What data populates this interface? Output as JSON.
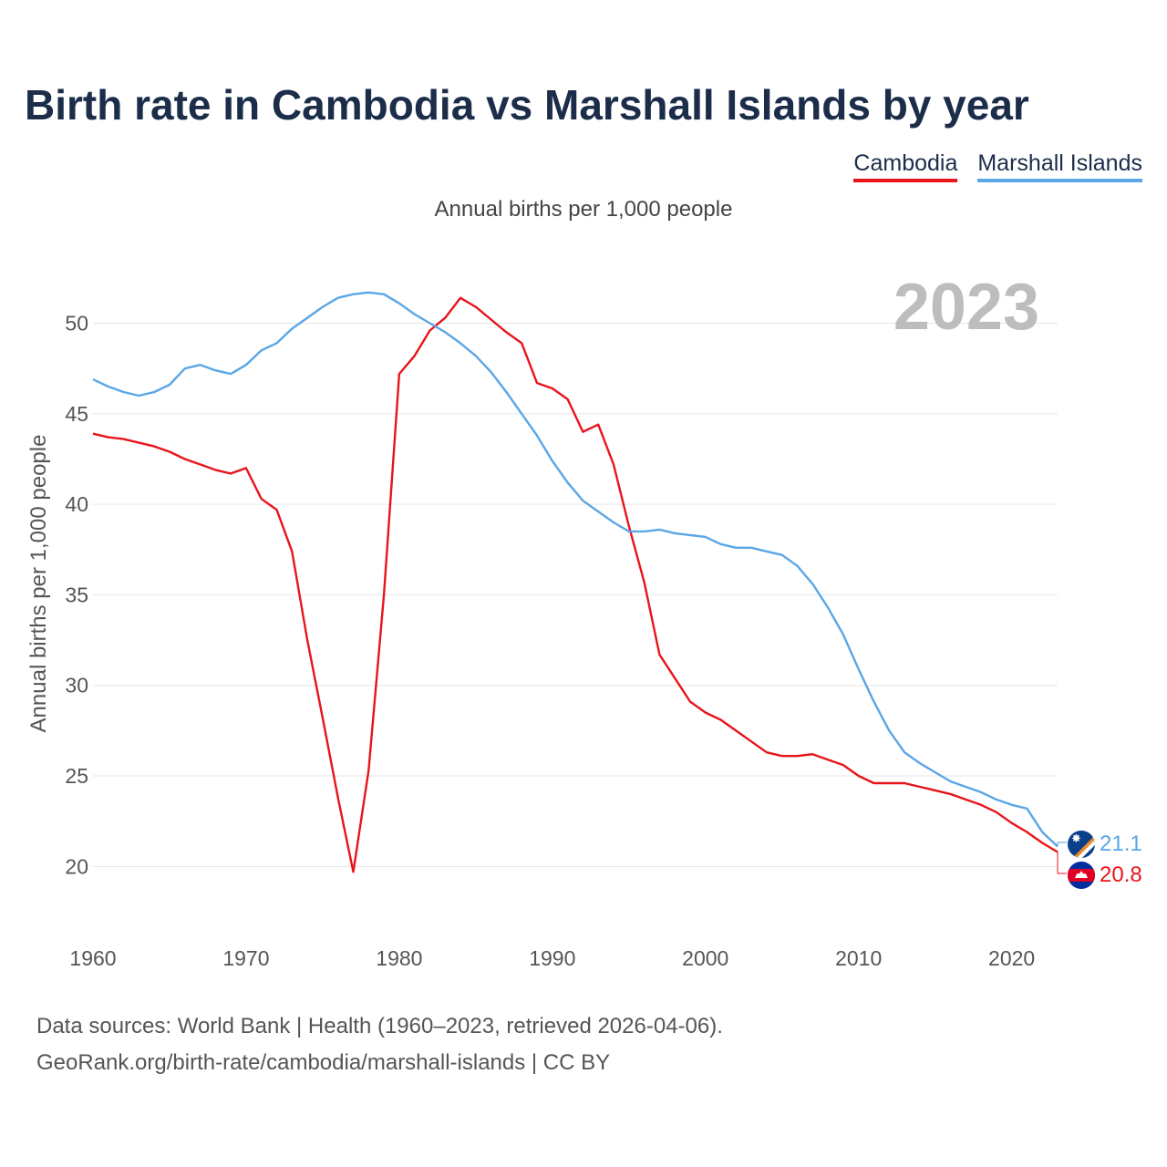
{
  "title": "Birth rate in Cambodia vs Marshall Islands by year",
  "subtitle": "Annual births per 1,000 people",
  "year_label": "2023",
  "legend": [
    {
      "name": "Cambodia",
      "color": "#e8141b"
    },
    {
      "name": "Marshall Islands",
      "color": "#5aa6e6"
    }
  ],
  "source": {
    "line1": "Data sources: World Bank | Health (1960–2023, retrieved 2026-04-06).",
    "line2": "GeoRank.org/birth-rate/cambodia/marshall-islands | CC BY"
  },
  "flags": {
    "cambodia": "cambodia-flag-icon",
    "marshall": "marshall-islands-flag-icon"
  },
  "chart_data": {
    "type": "line",
    "title": "Birth rate in Cambodia vs Marshall Islands by year",
    "ylabel": "Annual births per 1,000 people",
    "xlabel": "",
    "xlim": [
      1960,
      2023
    ],
    "ylim": [
      17.5,
      53.5
    ],
    "xticks": [
      1960,
      1970,
      1980,
      1990,
      2000,
      2010,
      2020
    ],
    "yticks": [
      20,
      25,
      30,
      35,
      40,
      45,
      50
    ],
    "grid": true,
    "legend_position": "top-right",
    "x": [
      1960,
      1961,
      1962,
      1963,
      1964,
      1965,
      1966,
      1967,
      1968,
      1969,
      1970,
      1971,
      1972,
      1973,
      1974,
      1975,
      1976,
      1977,
      1978,
      1979,
      1980,
      1981,
      1982,
      1983,
      1984,
      1985,
      1986,
      1987,
      1988,
      1989,
      1990,
      1991,
      1992,
      1993,
      1994,
      1995,
      1996,
      1997,
      1998,
      1999,
      2000,
      2001,
      2002,
      2003,
      2004,
      2005,
      2006,
      2007,
      2008,
      2009,
      2010,
      2011,
      2012,
      2013,
      2014,
      2015,
      2016,
      2017,
      2018,
      2019,
      2020,
      2021,
      2022,
      2023
    ],
    "series": [
      {
        "name": "Cambodia",
        "color": "#e8141b",
        "end_label": "20.8",
        "values": [
          43.9,
          43.7,
          43.6,
          43.4,
          43.2,
          42.9,
          42.5,
          42.2,
          41.9,
          41.7,
          42.0,
          40.3,
          39.7,
          37.4,
          32.5,
          28.2,
          23.8,
          19.7,
          25.3,
          35.0,
          47.2,
          48.2,
          49.6,
          50.3,
          51.4,
          50.9,
          50.2,
          49.5,
          48.9,
          46.7,
          46.4,
          45.8,
          44.0,
          44.4,
          42.2,
          38.8,
          35.7,
          31.7,
          30.4,
          29.1,
          28.5,
          28.1,
          27.5,
          26.9,
          26.3,
          26.1,
          26.1,
          26.2,
          25.9,
          25.6,
          25.0,
          24.6,
          24.6,
          24.6,
          24.4,
          24.2,
          24.0,
          23.7,
          23.4,
          23.0,
          22.4,
          21.9,
          21.3,
          20.8
        ]
      },
      {
        "name": "Marshall Islands",
        "color": "#5aa6e6",
        "end_label": "21.1",
        "values": [
          46.9,
          46.5,
          46.2,
          46.0,
          46.2,
          46.6,
          47.5,
          47.7,
          47.4,
          47.2,
          47.7,
          48.5,
          48.9,
          49.7,
          50.3,
          50.9,
          51.4,
          51.6,
          51.7,
          51.6,
          51.1,
          50.5,
          50.0,
          49.5,
          48.9,
          48.2,
          47.3,
          46.2,
          45.0,
          43.8,
          42.4,
          41.2,
          40.2,
          39.6,
          39.0,
          38.5,
          38.5,
          38.6,
          38.4,
          38.3,
          38.2,
          37.8,
          37.6,
          37.6,
          37.4,
          37.2,
          36.6,
          35.6,
          34.3,
          32.8,
          30.9,
          29.1,
          27.5,
          26.3,
          25.7,
          25.2,
          24.7,
          24.4,
          24.1,
          23.7,
          23.4,
          23.2,
          21.9,
          21.1
        ]
      }
    ]
  }
}
